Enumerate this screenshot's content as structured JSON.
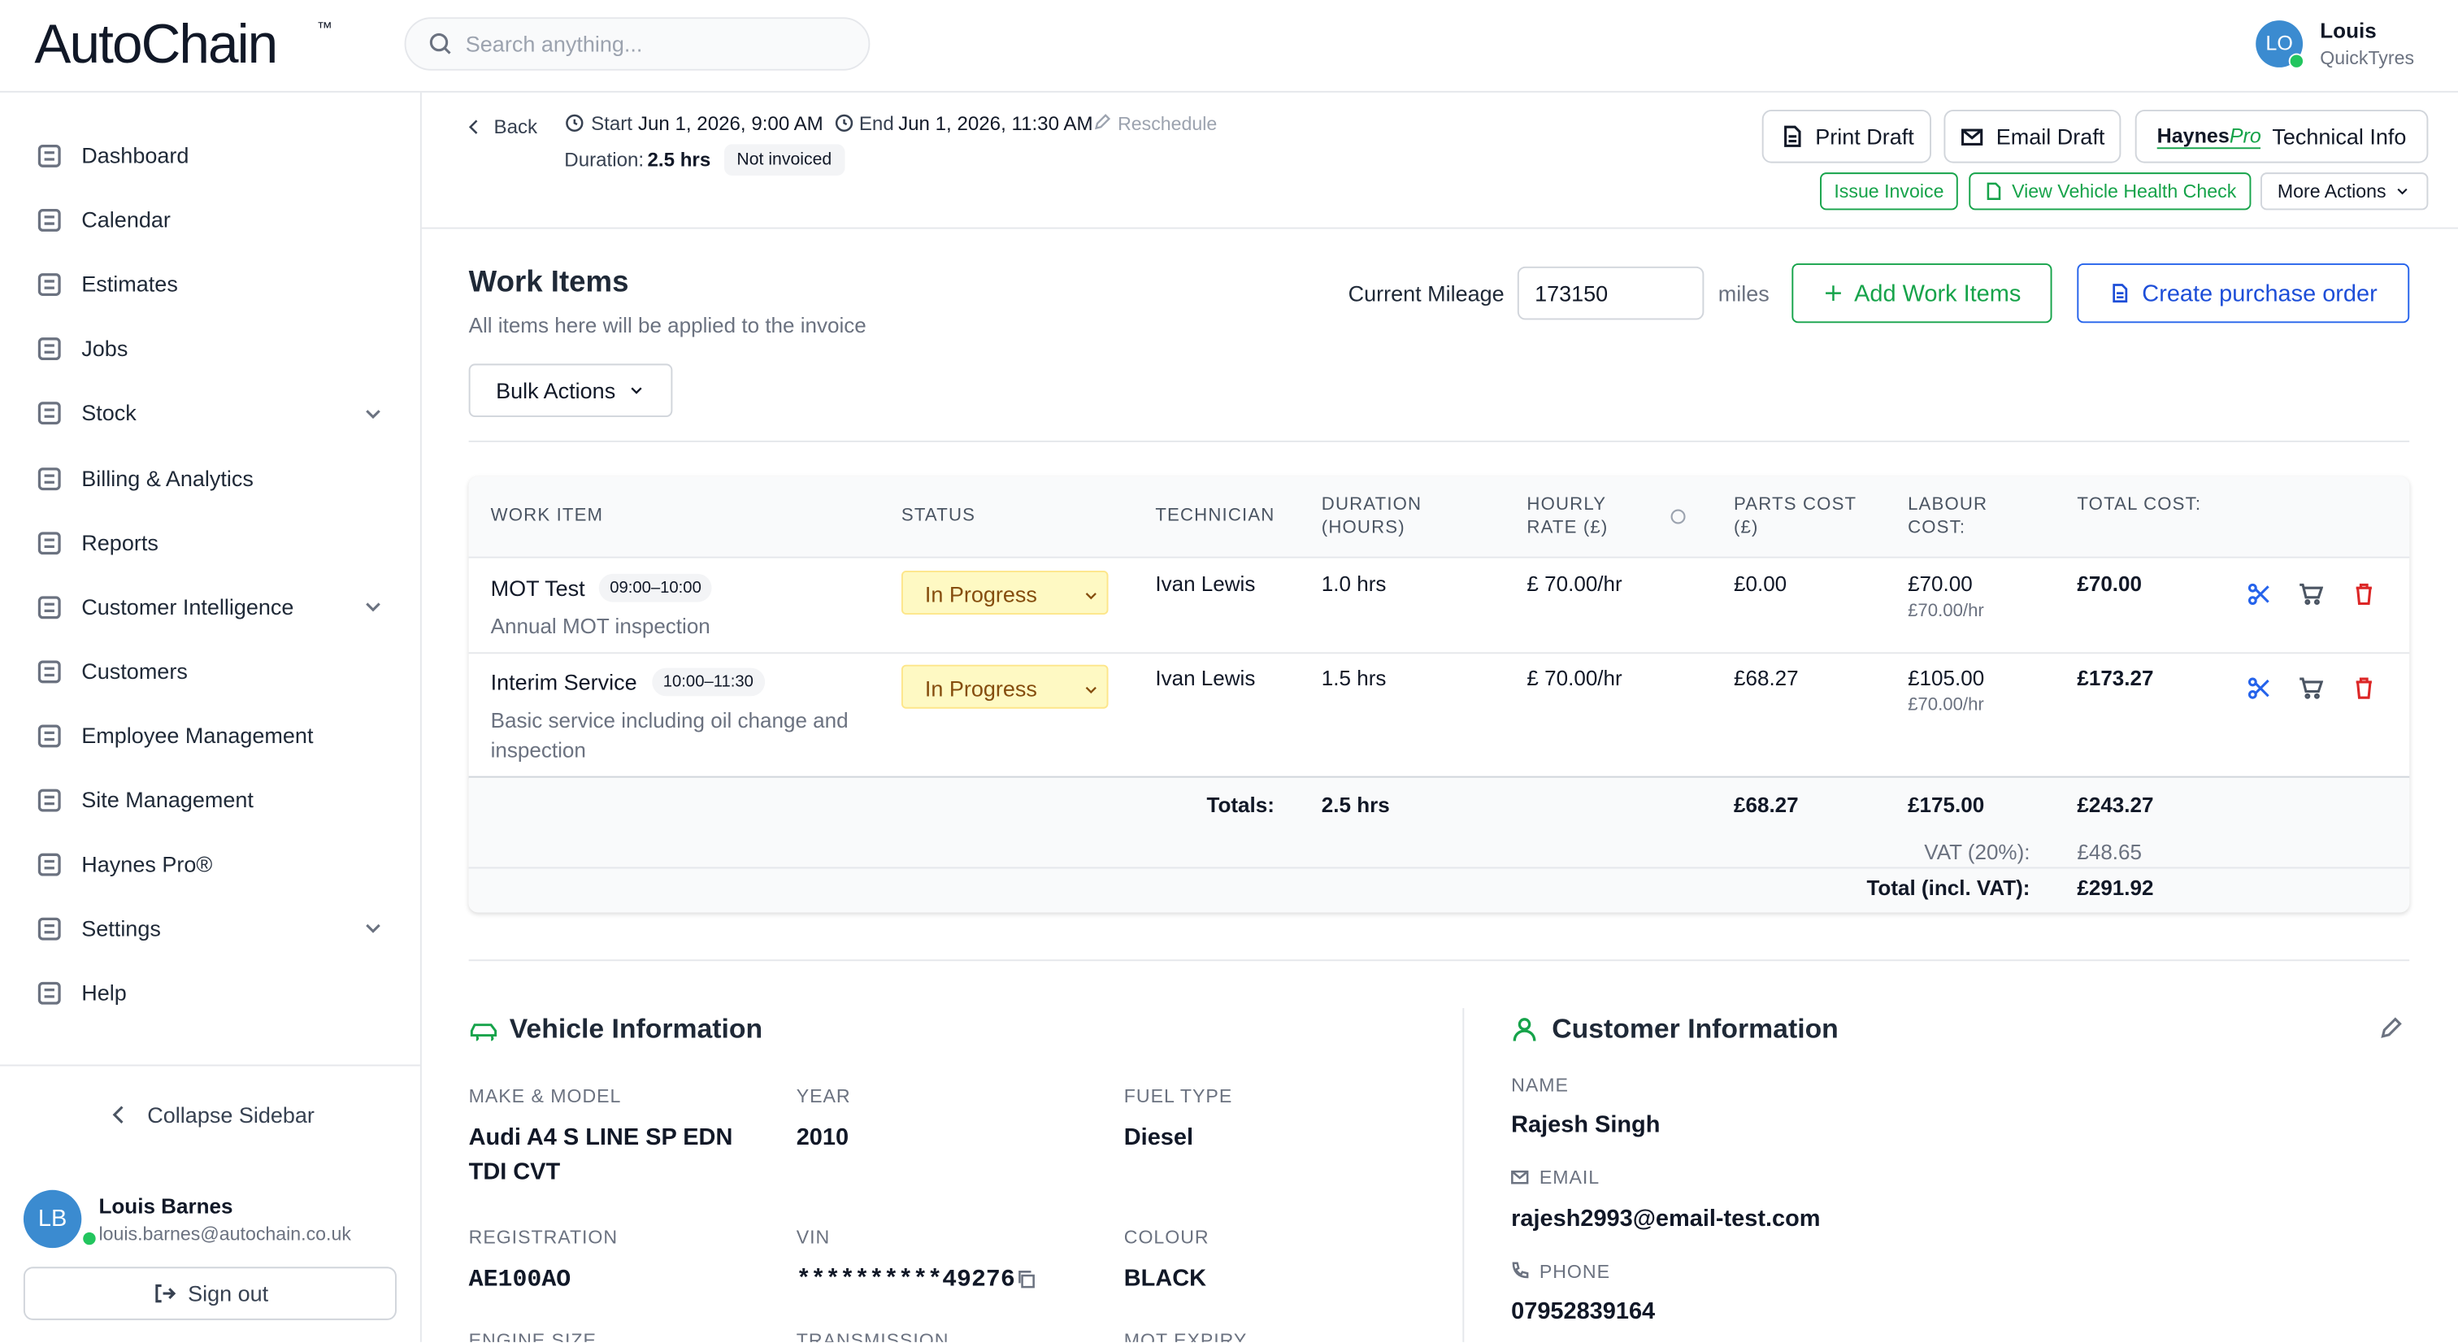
{
  "header": {
    "logo": "AutoChain",
    "logo_tm": "™",
    "search_placeholder": "Search anything...",
    "user_initials": "LO",
    "user_name": "Louis",
    "user_company": "QuickTyres"
  },
  "sidebar": {
    "items": [
      "Dashboard",
      "Calendar",
      "Estimates",
      "Jobs",
      "Stock",
      "Billing & Analytics",
      "Reports",
      "Customer Intelligence",
      "Customers",
      "Employee Management",
      "Site Management",
      "Haynes Pro®",
      "Settings",
      "Help"
    ],
    "collapse": "Collapse Sidebar",
    "user_initials": "LB",
    "user_name": "Louis Barnes",
    "user_email": "louis.barnes@autochain.co.uk",
    "sign_out": "Sign out"
  },
  "job": {
    "back": "Back",
    "start_label": "Start",
    "start": "Jun 1, 2026, 9:00 AM",
    "end_label": "End",
    "end": "Jun 1, 2026, 11:30 AM",
    "reschedule": "Reschedule",
    "duration_label": "Duration:",
    "duration": "2.5 hrs",
    "invoice_status": "Not invoiced"
  },
  "actions": {
    "print": "Print Draft",
    "email": "Email Draft",
    "haynes": "Haynes",
    "pro": "Pro",
    "technical": "Technical Info",
    "issue": "Issue Invoice",
    "health": "View Vehicle Health Check",
    "more": "More Actions"
  },
  "work_items": {
    "title": "Work Items",
    "subtitle": "All items here will be applied to the invoice",
    "mileage_label": "Current Mileage",
    "mileage": "173150",
    "mileage_unit": "miles",
    "add": "Add Work Items",
    "purchase": "Create purchase order",
    "bulk": "Bulk Actions",
    "headers": [
      "WORK ITEM",
      "STATUS",
      "TECHNICIAN",
      "DURATION (HOURS)",
      "HOURLY RATE (£)",
      "PARTS COST (£)",
      "LABOUR COST:",
      "TOTAL COST:"
    ],
    "rows": [
      {
        "name": "MOT Test",
        "time": "09:00–10:00",
        "description": "Annual MOT inspection",
        "status": "In Progress",
        "technician": "Ivan Lewis",
        "duration": "1.0 hrs",
        "rate": "£ 70.00/hr",
        "parts": "£0.00",
        "labour": "£70.00",
        "labour_rate": "£70.00/hr",
        "total": "£70.00"
      },
      {
        "name": "Interim Service",
        "time": "10:00–11:30",
        "description": "Basic service including oil change and inspection",
        "status": "In Progress",
        "technician": "Ivan Lewis",
        "duration": "1.5 hrs",
        "rate": "£ 70.00/hr",
        "parts": "£68.27",
        "labour": "£105.00",
        "labour_rate": "£70.00/hr",
        "total": "£173.27"
      }
    ],
    "totals_label": "Totals:",
    "totals_duration": "2.5 hrs",
    "totals_parts": "£68.27",
    "totals_labour": "£175.00",
    "totals_total": "£243.27",
    "vat_label": "VAT (20%):",
    "vat": "£48.65",
    "grand_label": "Total (incl. VAT):",
    "grand": "£291.92"
  },
  "vehicle": {
    "title": "Vehicle Information",
    "fields": [
      {
        "label": "MAKE & MODEL",
        "value": "Audi A4 S LINE SP EDN TDI CVT"
      },
      {
        "label": "YEAR",
        "value": "2010"
      },
      {
        "label": "FUEL TYPE",
        "value": "Diesel"
      },
      {
        "label": "REGISTRATION",
        "value": "AE100AO"
      },
      {
        "label": "VIN",
        "value": "**********49276"
      },
      {
        "label": "COLOUR",
        "value": "BLACK"
      }
    ],
    "more_labels": [
      "ENGINE SIZE",
      "TRANSMISSION",
      "MOT EXPIRY"
    ]
  },
  "customer": {
    "title": "Customer Information",
    "name_label": "NAME",
    "name": "Rajesh Singh",
    "email_label": "EMAIL",
    "email": "rajesh2993@email-test.com",
    "phone_label": "PHONE",
    "phone": "07952839164"
  }
}
